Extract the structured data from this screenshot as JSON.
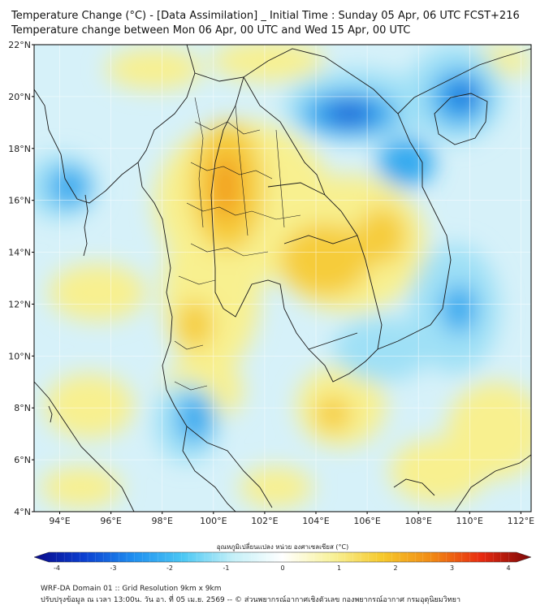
{
  "header": {
    "title_line1": "Temperature Change (°C) - [Data Assimilation] _ Initial Time : Sunday 05 Apr, 06 UTC FCST+216",
    "title_line2": "Temperature change between Mon 06 Apr, 00 UTC and Wed 15 Apr, 00 UTC"
  },
  "map": {
    "lat_ticks": [
      "22°N",
      "20°N",
      "18°N",
      "16°N",
      "14°N",
      "12°N",
      "10°N",
      "8°N",
      "6°N",
      "4°N"
    ],
    "lon_ticks": [
      "94°E",
      "96°E",
      "98°E",
      "100°E",
      "102°E",
      "104°E",
      "106°E",
      "108°E",
      "110°E",
      "112°E"
    ],
    "colors": {
      "background": "#d6f1f9",
      "strong_blue": "#1e5fd6",
      "blue": "#33a9ef",
      "light_blue": "#9fe0f6",
      "yellow": "#f8f08f",
      "gold": "#f6cc3a",
      "orange": "#f29a1c",
      "boundary": "#1a1a1a",
      "grid": "#ffffff"
    }
  },
  "colorbar": {
    "label": "อุณหภูมิเปลี่ยนแปลง หน่วย องศาเซลเซียส (°C)",
    "ticks": [
      "-4",
      "-3",
      "-2",
      "-1",
      "0",
      "1",
      "2",
      "3",
      "4"
    ],
    "min": -4,
    "max": 4,
    "colors": [
      "#0a0a8a",
      "#0b3fd0",
      "#1f8ff0",
      "#4cc8f4",
      "#c4f0f8",
      "#ffffff",
      "#f8f29a",
      "#f6c92c",
      "#f18a14",
      "#e82a10",
      "#7a0808"
    ]
  },
  "footer": {
    "line1": "WRF-DA Domain 01 :: Grid Resolution 9km x 9km",
    "line2": "ปรับปรุงข้อมูล ณ เวลา 13:00น. วัน อา. ที่ 05 เม.ย. 2569 -- © ส่วนพยากรณ์อากาศเชิงตัวเลข กองพยากรณ์อากาศ กรมอุตุนิยมวิทยา"
  }
}
